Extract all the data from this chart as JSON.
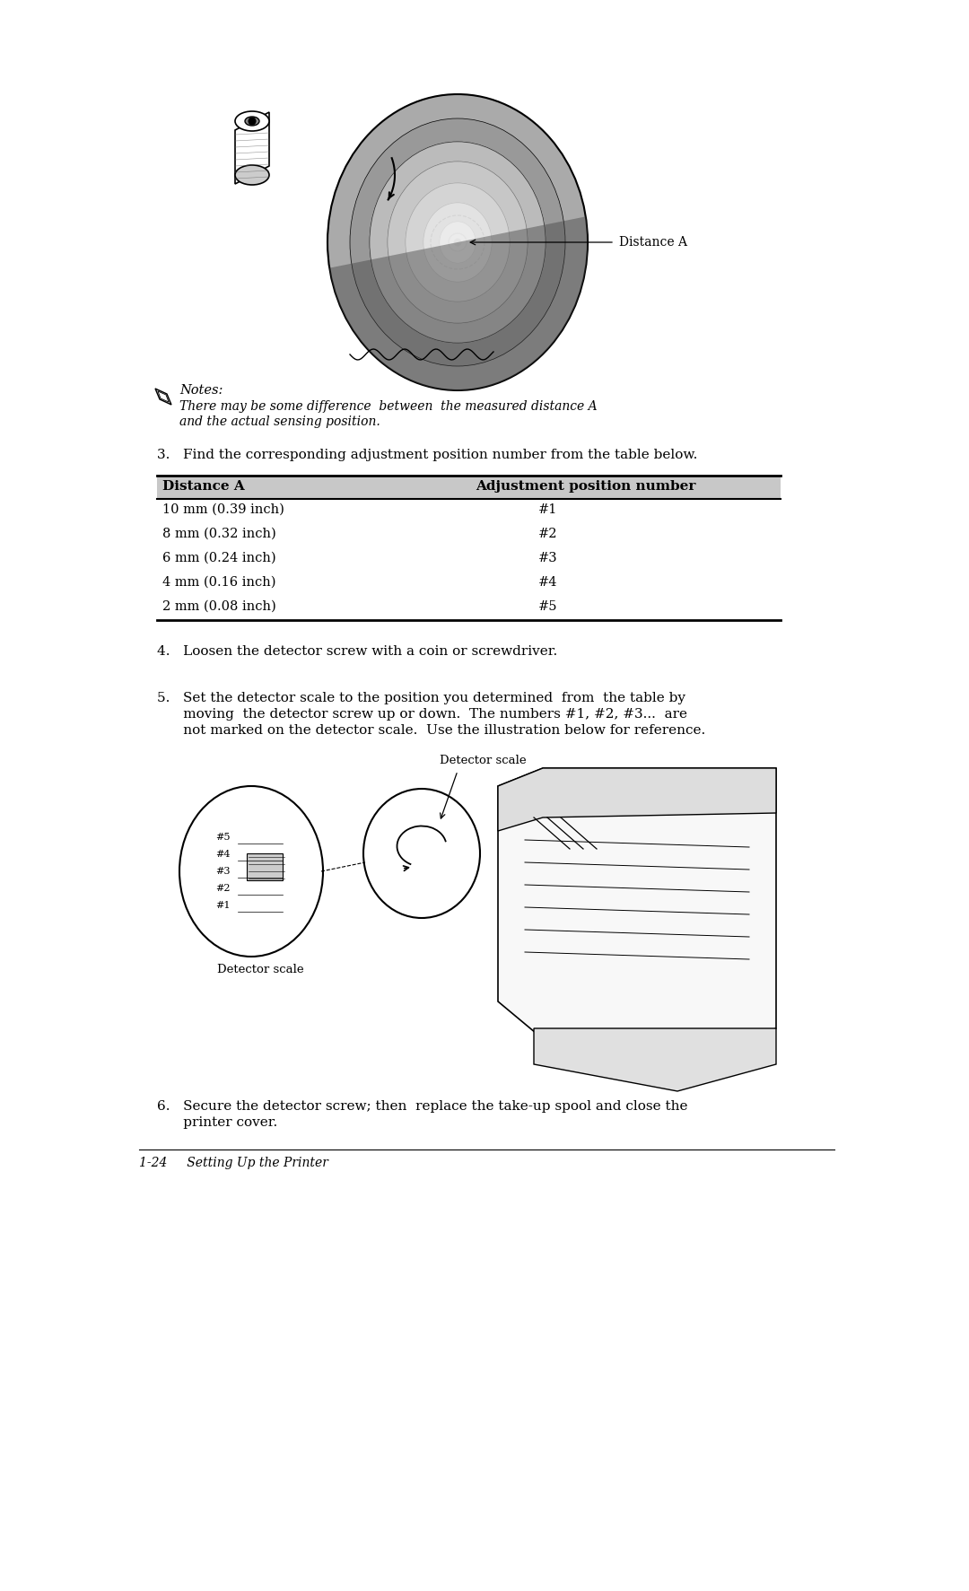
{
  "page_bg": "#ffffff",
  "figsize": [
    10.8,
    17.73
  ],
  "dpi": 100,
  "top_image_label": "Distance A",
  "notes_header": "Notes:",
  "notes_body_line1": "There may be some difference  between  the measured distance A",
  "notes_body_line2": "and the actual sensing position.",
  "step3_text": "3.   Find the corresponding adjustment position number from the table below.",
  "table_header_col1": "Distance A",
  "table_header_col2": "Adjustment position number",
  "table_rows": [
    [
      "10 mm (0.39 inch)",
      "#1"
    ],
    [
      "8 mm (0.32 inch)",
      "#2"
    ],
    [
      "6 mm (0.24 inch)",
      "#3"
    ],
    [
      "4 mm (0.16 inch)",
      "#4"
    ],
    [
      "2 mm (0.08 inch)",
      "#5"
    ]
  ],
  "step4_text": "4.   Loosen the detector screw with a coin or screwdriver.",
  "step5_line1": "5.   Set the detector scale to the position you determined  from  the table by",
  "step5_line2": "      moving  the detector screw up or down.  The numbers #1, #2, #3...  are",
  "step5_line3": "      not marked on the detector scale.  Use the illustration below for reference.",
  "detector_scale_label_top": "Detector scale",
  "detector_scale_label_bottom": "Detector scale",
  "step6_line1": "6.   Secure the detector screw; then  replace the take-up spool and close the",
  "step6_line2": "      printer cover.",
  "footer_text": "1-24     Setting Up the Printer",
  "text_color": "#000000",
  "table_bg": "#c8c8c8"
}
